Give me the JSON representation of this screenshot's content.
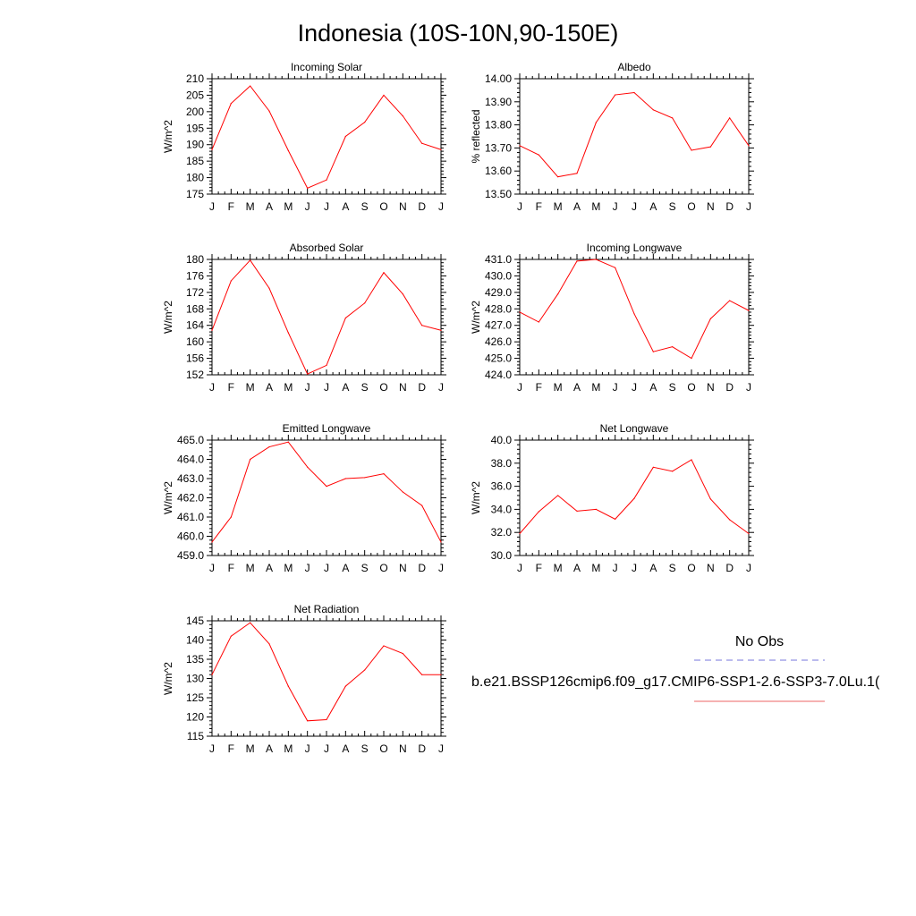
{
  "page_title": "Indonesia (10S-10N,90-150E)",
  "legend": {
    "entries": [
      {
        "label": "No Obs",
        "style": "dashed",
        "color": "#7777dd"
      },
      {
        "label": "b.e21.BSSP126cmip6.f09_g17.CMIP6-SSP1-2.6-SSP3-7.0Lu.1(",
        "style": "solid",
        "color": "#ee6666"
      }
    ]
  },
  "chart_data": [
    {
      "type": "line",
      "title": "Incoming Solar",
      "xlabel": "",
      "ylabel": "W/m^2",
      "categories": [
        "J",
        "F",
        "M",
        "A",
        "M",
        "J",
        "J",
        "A",
        "S",
        "O",
        "N",
        "D",
        "J"
      ],
      "ylim": [
        175,
        210
      ],
      "yticks": [
        175,
        180,
        185,
        190,
        195,
        200,
        205,
        210
      ],
      "ytick_labels": [
        "175",
        "180",
        "185",
        "190",
        "195",
        "200",
        "205",
        "210"
      ],
      "series": [
        {
          "color": "#ff0000",
          "values": [
            188.5,
            202.5,
            207.8,
            200.2,
            188.2,
            176.8,
            179.3,
            192.5,
            196.8,
            205.0,
            198.7,
            190.4,
            188.5
          ]
        }
      ]
    },
    {
      "type": "line",
      "title": "Albedo",
      "xlabel": "",
      "ylabel": "% reflected",
      "categories": [
        "J",
        "F",
        "M",
        "A",
        "M",
        "J",
        "J",
        "A",
        "S",
        "O",
        "N",
        "D",
        "J"
      ],
      "ylim": [
        13.5,
        14.0
      ],
      "yticks": [
        13.5,
        13.6,
        13.7,
        13.8,
        13.9,
        14.0
      ],
      "ytick_labels": [
        "13.50",
        "13.60",
        "13.70",
        "13.80",
        "13.90",
        "14.00"
      ],
      "series": [
        {
          "color": "#ff0000",
          "values": [
            13.71,
            13.67,
            13.575,
            13.59,
            13.81,
            13.93,
            13.94,
            13.865,
            13.83,
            13.69,
            13.705,
            13.83,
            13.71
          ]
        }
      ]
    },
    {
      "type": "line",
      "title": "Absorbed Solar",
      "xlabel": "",
      "ylabel": "W/m^2",
      "categories": [
        "J",
        "F",
        "M",
        "A",
        "M",
        "J",
        "J",
        "A",
        "S",
        "O",
        "N",
        "D",
        "J"
      ],
      "ylim": [
        152,
        180
      ],
      "yticks": [
        152,
        156,
        160,
        164,
        168,
        172,
        176,
        180
      ],
      "ytick_labels": [
        "152",
        "156",
        "160",
        "164",
        "168",
        "172",
        "176",
        "180"
      ],
      "series": [
        {
          "color": "#ff0000",
          "values": [
            162.8,
            174.8,
            179.8,
            173.0,
            162.2,
            152.2,
            154.3,
            165.8,
            169.4,
            176.8,
            171.6,
            164.0,
            162.8
          ]
        }
      ]
    },
    {
      "type": "line",
      "title": "Incoming Longwave",
      "xlabel": "",
      "ylabel": "W/m^2",
      "categories": [
        "J",
        "F",
        "M",
        "A",
        "M",
        "J",
        "J",
        "A",
        "S",
        "O",
        "N",
        "D",
        "J"
      ],
      "ylim": [
        424,
        431
      ],
      "yticks": [
        424,
        425,
        426,
        427,
        428,
        429,
        430,
        431
      ],
      "ytick_labels": [
        "424.0",
        "425.0",
        "426.0",
        "427.0",
        "428.0",
        "429.0",
        "430.0",
        "431.0"
      ],
      "series": [
        {
          "color": "#ff0000",
          "values": [
            427.8,
            427.2,
            428.9,
            430.9,
            431.0,
            430.5,
            427.7,
            425.4,
            425.7,
            425.0,
            427.4,
            428.5,
            427.9
          ]
        }
      ]
    },
    {
      "type": "line",
      "title": "Emitted Longwave",
      "xlabel": "",
      "ylabel": "W/m^2",
      "categories": [
        "J",
        "F",
        "M",
        "A",
        "M",
        "J",
        "J",
        "A",
        "S",
        "O",
        "N",
        "D",
        "J"
      ],
      "ylim": [
        459,
        465
      ],
      "yticks": [
        459,
        460,
        461,
        462,
        463,
        464,
        465
      ],
      "ytick_labels": [
        "459.0",
        "460.0",
        "461.0",
        "462.0",
        "463.0",
        "464.0",
        "465.0"
      ],
      "series": [
        {
          "color": "#ff0000",
          "values": [
            459.7,
            461.0,
            464.0,
            464.65,
            464.9,
            463.6,
            462.6,
            463.0,
            463.05,
            463.25,
            462.3,
            461.6,
            459.7
          ]
        }
      ]
    },
    {
      "type": "line",
      "title": "Net Longwave",
      "xlabel": "",
      "ylabel": "W/m^2",
      "categories": [
        "J",
        "F",
        "M",
        "A",
        "M",
        "J",
        "J",
        "A",
        "S",
        "O",
        "N",
        "D",
        "J"
      ],
      "ylim": [
        30,
        40
      ],
      "yticks": [
        30,
        32,
        34,
        36,
        38,
        40
      ],
      "ytick_labels": [
        "30.0",
        "32.0",
        "34.0",
        "36.0",
        "38.0",
        "40.0"
      ],
      "series": [
        {
          "color": "#ff0000",
          "values": [
            31.9,
            33.8,
            35.2,
            33.85,
            34.0,
            33.15,
            34.95,
            37.65,
            37.3,
            38.3,
            34.9,
            33.1,
            31.9
          ]
        }
      ]
    },
    {
      "type": "line",
      "title": "Net Radiation",
      "xlabel": "",
      "ylabel": "W/m^2",
      "categories": [
        "J",
        "F",
        "M",
        "A",
        "M",
        "J",
        "J",
        "A",
        "S",
        "O",
        "N",
        "D",
        "J"
      ],
      "ylim": [
        115,
        145
      ],
      "yticks": [
        115,
        120,
        125,
        130,
        135,
        140,
        145
      ],
      "ytick_labels": [
        "115",
        "120",
        "125",
        "130",
        "135",
        "140",
        "145"
      ],
      "series": [
        {
          "color": "#ff0000",
          "values": [
            131.0,
            141.0,
            144.5,
            139.0,
            128.0,
            119.0,
            119.3,
            128.0,
            132.2,
            138.5,
            136.5,
            131.0,
            131.0
          ]
        }
      ]
    }
  ]
}
